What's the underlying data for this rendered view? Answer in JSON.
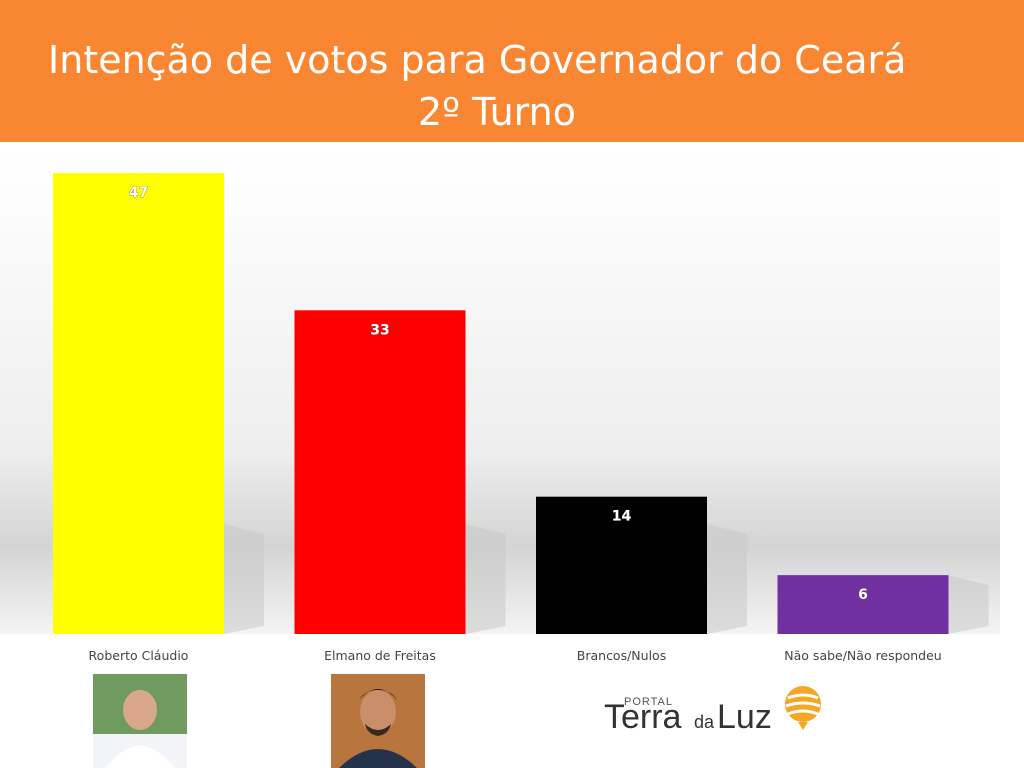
{
  "header": {
    "title_line1": "Intenção de votos para Governador do Ceará",
    "title_line2": "2º Turno"
  },
  "chart_data": {
    "type": "bar",
    "title": "Intenção de votos para Governador do Ceará 2º Turno",
    "categories": [
      "Roberto Cláudio",
      "Elmano de Freitas",
      "Brancos/Nulos",
      "Não sabe/Não respondeu"
    ],
    "values": [
      47,
      33,
      14,
      6
    ],
    "colors": [
      "#ffff00",
      "#ff0000",
      "#000000",
      "#7030a0"
    ],
    "ylim": [
      0,
      47
    ],
    "grid": false,
    "legend": "none"
  },
  "footer": {
    "logo": {
      "portal": "PORTAL",
      "terra": "Terra",
      "da": "da",
      "luz": "Luz",
      "accent": "#f5a623"
    }
  }
}
